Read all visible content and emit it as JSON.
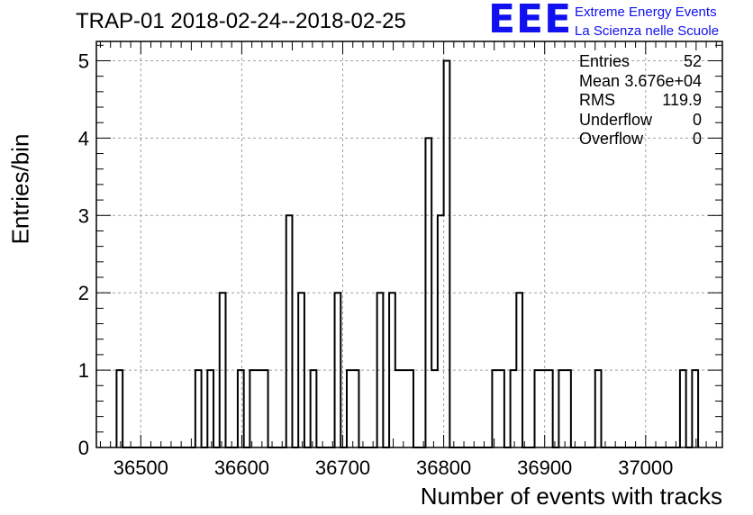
{
  "chart_data": {
    "type": "histogram",
    "title": "TRAP-01 2018-02-24--2018-02-25",
    "xlabel": "Number of events with tracks",
    "ylabel": "Entries/bin",
    "xlim": [
      36456,
      37076
    ],
    "ylim": [
      0,
      5.25
    ],
    "bin_start": 36476,
    "bin_width": 6,
    "bin_counts": [
      1,
      0,
      0,
      0,
      0,
      0,
      0,
      0,
      0,
      0,
      0,
      0,
      0,
      1,
      0,
      1,
      0,
      2,
      0,
      0,
      1,
      0,
      1,
      1,
      1,
      0,
      0,
      0,
      3,
      0,
      2,
      0,
      1,
      0,
      0,
      0,
      2,
      0,
      1,
      1,
      0,
      0,
      0,
      2,
      0,
      2,
      1,
      1,
      1,
      0,
      0,
      4,
      1,
      3,
      5,
      0,
      0,
      0,
      0,
      0,
      0,
      0,
      1,
      1,
      0,
      1,
      2,
      0,
      0,
      1,
      1,
      1,
      0,
      1,
      1,
      0,
      0,
      0,
      0,
      1,
      0,
      0,
      0,
      0,
      0,
      0,
      0,
      0,
      0,
      0,
      0,
      0,
      0,
      1,
      0,
      1
    ],
    "xticks": [
      36500,
      36600,
      36700,
      36800,
      36900,
      37000
    ],
    "yticks": [
      0,
      1,
      2,
      3,
      4,
      5
    ],
    "grid": true,
    "stats": [
      {
        "label": "Entries",
        "value": "52"
      },
      {
        "label": "Mean",
        "value": "3.676e+04"
      },
      {
        "label": "RMS",
        "value": "119.9"
      },
      {
        "label": "Underflow",
        "value": "0"
      },
      {
        "label": "Overflow",
        "value": "0"
      }
    ]
  },
  "logo": {
    "mark": "EEE",
    "line1": "Extreme Energy Events",
    "line2": "La Scienza nelle Scuole",
    "color": "#1010f0"
  }
}
